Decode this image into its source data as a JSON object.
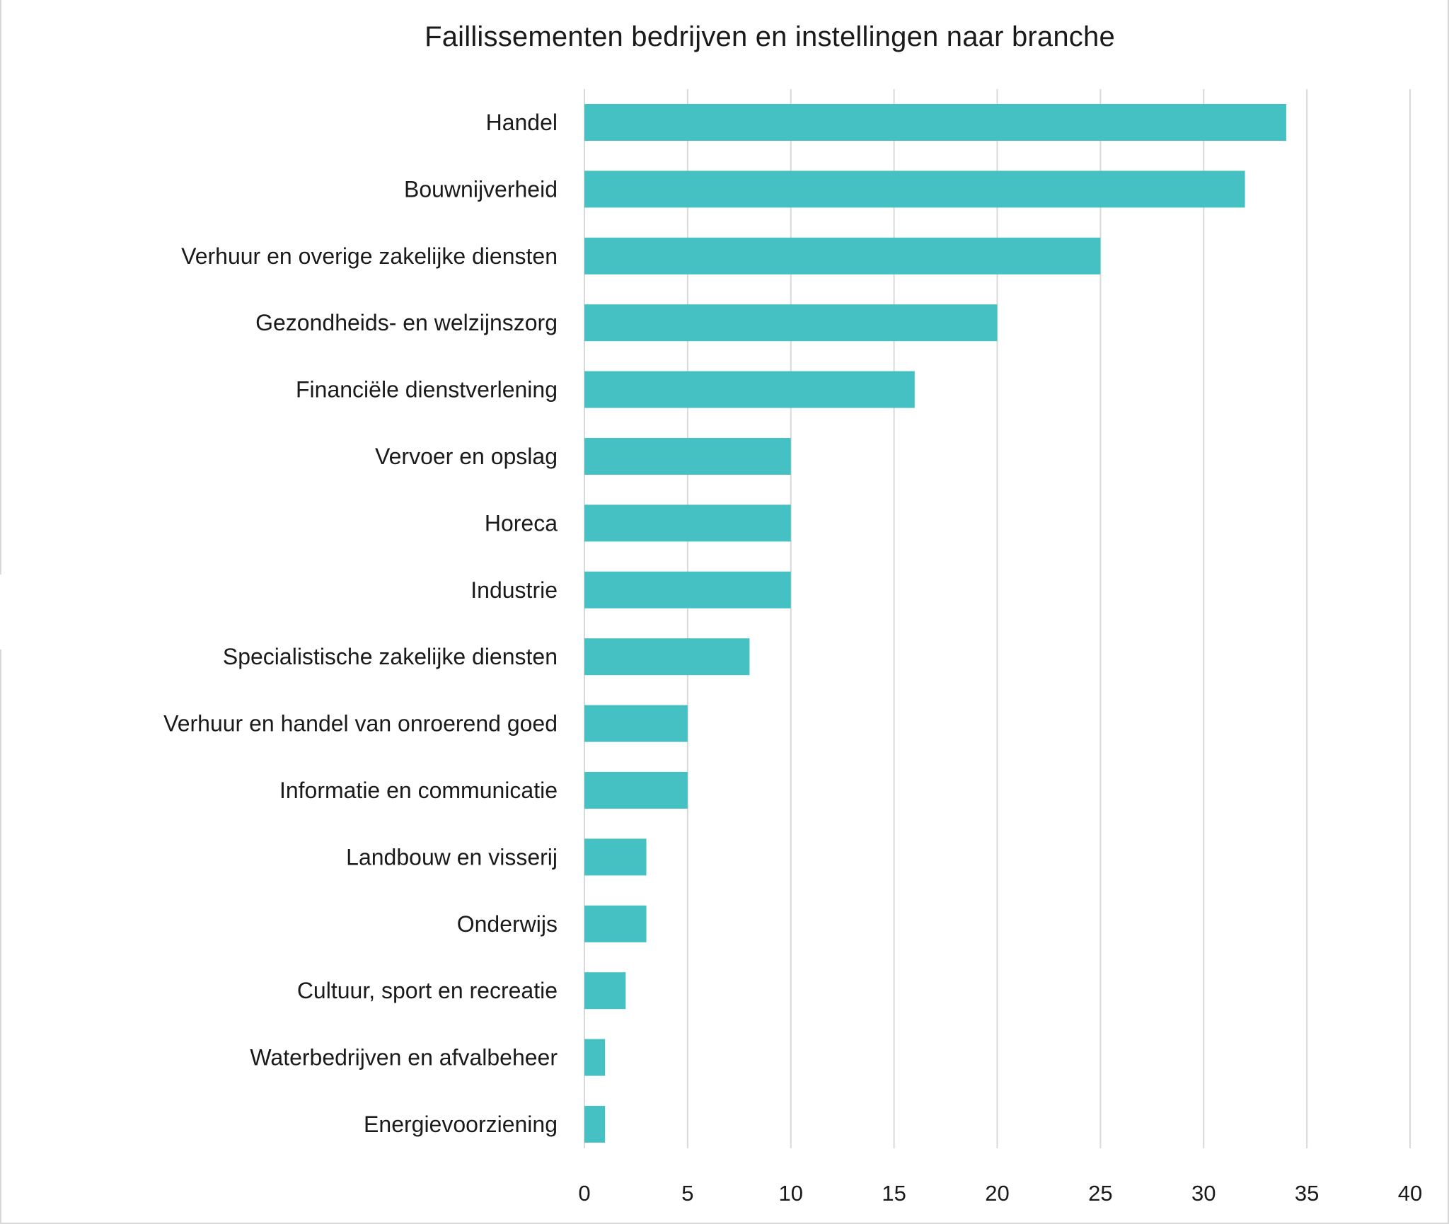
{
  "chart_data": {
    "type": "bar",
    "orientation": "horizontal",
    "title": "Faillissementen bedrijven en instellingen naar branche",
    "categories": [
      "Handel",
      "Bouwnijverheid",
      "Verhuur en overige zakelijke diensten",
      "Gezondheids- en welzijnszorg",
      "Financiële dienstverlening",
      "Vervoer en opslag",
      "Horeca",
      "Industrie",
      "Specialistische zakelijke diensten",
      "Verhuur en handel van onroerend goed",
      "Informatie en communicatie",
      "Landbouw en visserij",
      "Onderwijs",
      "Cultuur, sport en recreatie",
      "Waterbedrijven en afvalbeheer",
      "Energievoorziening"
    ],
    "values": [
      34,
      32,
      25,
      20,
      16,
      10,
      10,
      10,
      8,
      5,
      5,
      3,
      3,
      2,
      1,
      1
    ],
    "xlim": [
      0,
      40
    ],
    "xticks": [
      0,
      5,
      10,
      15,
      20,
      25,
      30,
      35,
      40
    ],
    "grid": true,
    "legend": "none",
    "bar_color": "#45C1C4",
    "grid_color": "#d9d9d9"
  }
}
